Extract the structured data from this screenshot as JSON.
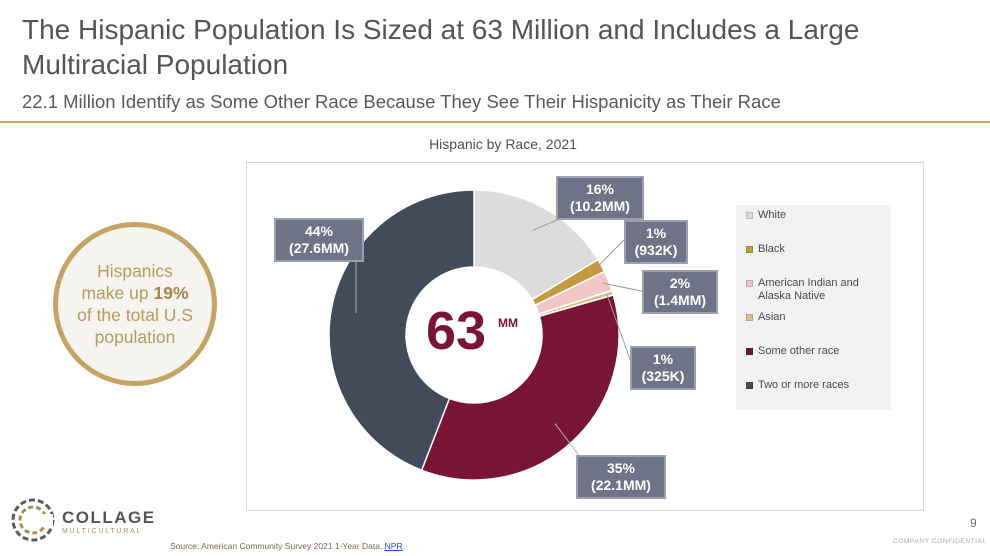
{
  "header": {
    "title": "The Hispanic Population Is Sized at 63 Million and Includes a Large Multiracial Population",
    "subtitle": "22.1 Million Identify as Some Other Race Because They See Their Hispanicity as Their Race"
  },
  "highlight": {
    "text_before": "Hispanics make up",
    "value": "19%",
    "text_after": "of the total U.S population"
  },
  "center_label": {
    "value": "63",
    "unit": "MM"
  },
  "colors": {
    "accent_gold": "#c7a86a",
    "white_slice": "#dcdcdc",
    "black_slice": "#c29a3f",
    "aian_slice": "#f2c6c6",
    "asian_slice": "#d8c08a",
    "other_slice": "#7a1434",
    "two_more_slice": "#434a59",
    "callout_bg": "#6e7387"
  },
  "chart_data": {
    "type": "pie",
    "title": "Hispanic  by Race, 2021",
    "donut": true,
    "legend_position": "right",
    "categories": [
      "White",
      "Black",
      "American Indian and Alaska Native",
      "Asian",
      "Some other race",
      "Two or more races"
    ],
    "values": [
      10.2,
      0.932,
      1.4,
      0.325,
      22.1,
      27.6
    ],
    "units": "millions",
    "data_labels": [
      {
        "pct": "16%",
        "count": "(10.2MM)"
      },
      {
        "pct": "1%",
        "count": "(932K)"
      },
      {
        "pct": "2%",
        "count": "(1.4MM)"
      },
      {
        "pct": "1%",
        "count": "(325K)"
      },
      {
        "pct": "35%",
        "count": "(22.1MM)"
      },
      {
        "pct": "44%",
        "count": "(27.6MM)"
      }
    ]
  },
  "footer": {
    "brand_name": "COLLAGE",
    "brand_tagline": "MULTICULTURAL",
    "source_text": "Source: American Community Survey 2021 1-Year Data, ",
    "source_link": "NPR",
    "page_number": "9",
    "confidential": "COMPANY  CONFIDENTIAL"
  }
}
